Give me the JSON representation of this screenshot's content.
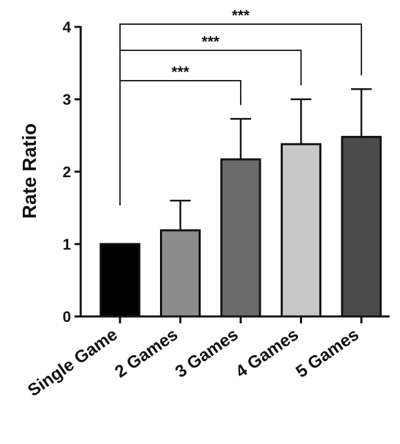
{
  "chart_data": {
    "type": "bar",
    "title": "",
    "xlabel": "",
    "ylabel": "Rate Ratio",
    "ylim": [
      0,
      4
    ],
    "yticks": [
      0,
      1,
      2,
      3,
      4
    ],
    "yticklabels": [
      "0",
      "1",
      "2",
      "3",
      "4"
    ],
    "categories": [
      "Single Game",
      "2 Games",
      "3 Games",
      "4 Games",
      "5 Games"
    ],
    "values": [
      1.0,
      1.19,
      2.17,
      2.38,
      2.48
    ],
    "error_upper": [
      0.0,
      0.41,
      0.56,
      0.62,
      0.66
    ],
    "bar_colors": [
      "#000000",
      "#8c8c8c",
      "#6b6b6b",
      "#c8c8c8",
      "#4a4a4a"
    ],
    "grid": false,
    "legend": "none",
    "significance": [
      {
        "from": "Single Game",
        "to": "3 Games",
        "label": "***"
      },
      {
        "from": "Single Game",
        "to": "4 Games",
        "label": "***"
      },
      {
        "from": "Single Game",
        "to": "5 Games",
        "label": "***"
      }
    ]
  }
}
